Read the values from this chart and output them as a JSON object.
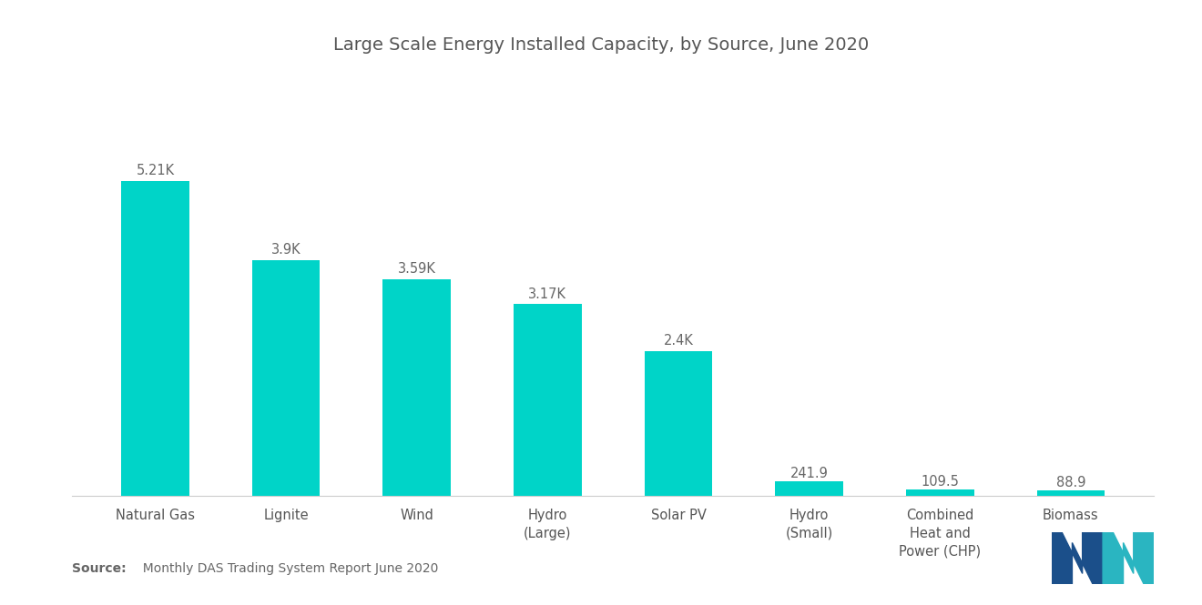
{
  "title": "Large Scale Energy Installed Capacity, by Source, June 2020",
  "categories": [
    "Natural Gas",
    "Lignite",
    "Wind",
    "Hydro\n(Large)",
    "Solar PV",
    "Hydro\n(Small)",
    "Combined\nHeat and\nPower (CHP)",
    "Biomass"
  ],
  "values": [
    5210,
    3900,
    3590,
    3170,
    2400,
    241.9,
    109.5,
    88.9
  ],
  "labels": [
    "5.21K",
    "3.9K",
    "3.59K",
    "3.17K",
    "2.4K",
    "241.9",
    "109.5",
    "88.9"
  ],
  "bar_color": "#00D4C8",
  "background_color": "#FFFFFF",
  "source_bold": "Source:",
  "source_rest": "  Monthly DAS Trading System Report June 2020",
  "title_fontsize": 14,
  "label_fontsize": 10.5,
  "tick_fontsize": 10.5,
  "source_fontsize": 10,
  "ylim": [
    0,
    6500
  ]
}
